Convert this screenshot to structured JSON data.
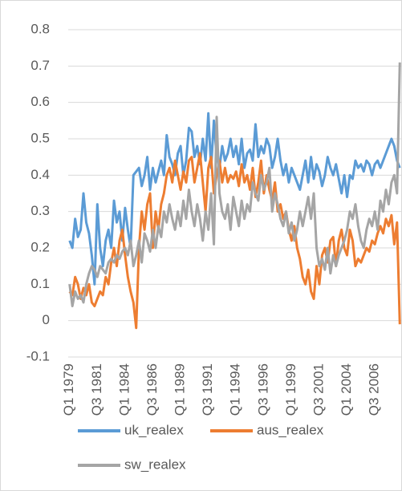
{
  "chart_data": {
    "type": "line",
    "categories": [
      "Q1 1979",
      null,
      null,
      null,
      null,
      null,
      null,
      null,
      null,
      null,
      "Q3 1981",
      null,
      null,
      null,
      null,
      null,
      null,
      null,
      null,
      null,
      "Q1 1984",
      null,
      null,
      null,
      null,
      null,
      null,
      null,
      null,
      null,
      "Q3 1986",
      null,
      null,
      null,
      null,
      null,
      null,
      null,
      null,
      null,
      "Q1 1989",
      null,
      null,
      null,
      null,
      null,
      null,
      null,
      null,
      null,
      "Q3 1991",
      null,
      null,
      null,
      null,
      null,
      null,
      null,
      null,
      null,
      "Q1 1994",
      null,
      null,
      null,
      null,
      null,
      null,
      null,
      null,
      null,
      "Q3 1996",
      null,
      null,
      null,
      null,
      null,
      null,
      null,
      null,
      null,
      "Q1 1999",
      null,
      null,
      null,
      null,
      null,
      null,
      null,
      null,
      null,
      "Q3 2001",
      null,
      null,
      null,
      null,
      null,
      null,
      null,
      null,
      null,
      "Q1 2004",
      null,
      null,
      null,
      null,
      null,
      null,
      null,
      null,
      null,
      "Q3 2006",
      null,
      null,
      null,
      null,
      null,
      null,
      null,
      null,
      null
    ],
    "series": [
      {
        "name": "uk_realex",
        "color": "#5b9bd5",
        "values": [
          0.22,
          0.2,
          0.28,
          0.23,
          0.25,
          0.35,
          0.27,
          0.24,
          0.18,
          0.1,
          0.32,
          0.2,
          0.15,
          0.22,
          0.25,
          0.2,
          0.33,
          0.27,
          0.3,
          0.22,
          0.31,
          0.25,
          0.2,
          0.4,
          0.41,
          0.42,
          0.37,
          0.4,
          0.45,
          0.36,
          0.42,
          0.38,
          0.41,
          0.44,
          0.4,
          0.51,
          0.45,
          0.43,
          0.4,
          0.46,
          0.48,
          0.4,
          0.44,
          0.53,
          0.52,
          0.45,
          0.48,
          0.43,
          0.5,
          0.44,
          0.57,
          0.42,
          0.55,
          0.45,
          0.42,
          0.48,
          0.44,
          0.46,
          0.5,
          0.45,
          0.48,
          0.43,
          0.5,
          0.42,
          0.46,
          0.47,
          0.44,
          0.54,
          0.45,
          0.48,
          0.46,
          0.5,
          0.48,
          0.42,
          0.45,
          0.5,
          0.44,
          0.4,
          0.43,
          0.38,
          0.42,
          0.4,
          0.38,
          0.36,
          0.4,
          0.44,
          0.38,
          0.45,
          0.39,
          0.43,
          0.41,
          0.37,
          0.4,
          0.45,
          0.42,
          0.4,
          0.43,
          0.39,
          0.35,
          0.4,
          0.34,
          0.4,
          0.39,
          0.44,
          0.42,
          0.43,
          0.41,
          0.44,
          0.43,
          0.4,
          0.43,
          0.44,
          0.42,
          0.44,
          0.46,
          0.48,
          0.5,
          0.48,
          0.44,
          0.42
        ]
      },
      {
        "name": "aus_realex",
        "color": "#ed7d31",
        "values": [
          0.08,
          0.07,
          0.12,
          0.1,
          0.06,
          0.09,
          0.07,
          0.1,
          0.05,
          0.04,
          0.06,
          0.08,
          0.07,
          0.12,
          0.1,
          0.16,
          0.2,
          0.15,
          0.22,
          0.25,
          0.18,
          0.12,
          0.08,
          0.05,
          -0.02,
          0.2,
          0.3,
          0.25,
          0.32,
          0.35,
          0.2,
          0.3,
          0.25,
          0.32,
          0.35,
          0.4,
          0.42,
          0.38,
          0.44,
          0.4,
          0.36,
          0.41,
          0.38,
          0.44,
          0.45,
          0.38,
          0.42,
          0.46,
          0.38,
          0.3,
          0.42,
          0.45,
          0.35,
          0.4,
          0.44,
          0.38,
          0.42,
          0.38,
          0.4,
          0.39,
          0.41,
          0.37,
          0.43,
          0.38,
          0.4,
          0.36,
          0.42,
          0.34,
          0.38,
          0.44,
          0.35,
          0.4,
          0.36,
          0.33,
          0.38,
          0.3,
          0.32,
          0.28,
          0.3,
          0.25,
          0.22,
          0.26,
          0.2,
          0.17,
          0.12,
          0.1,
          0.14,
          0.08,
          0.06,
          0.15,
          0.1,
          0.18,
          0.2,
          0.16,
          0.22,
          0.23,
          0.15,
          0.22,
          0.25,
          0.2,
          0.18,
          0.25,
          0.22,
          0.15,
          0.17,
          0.16,
          0.18,
          0.2,
          0.19,
          0.22,
          0.21,
          0.24,
          0.26,
          0.24,
          0.28,
          0.26,
          0.29,
          0.21,
          0.27,
          -0.01
        ]
      },
      {
        "name": "sw_realex",
        "color": "#a5a5a5",
        "values": [
          0.1,
          0.04,
          0.08,
          0.06,
          0.07,
          0.05,
          0.1,
          0.13,
          0.15,
          0.14,
          0.12,
          0.15,
          0.14,
          0.13,
          0.16,
          0.17,
          0.16,
          0.18,
          0.17,
          0.19,
          0.2,
          0.18,
          0.22,
          0.15,
          0.18,
          0.22,
          0.16,
          0.24,
          0.22,
          0.19,
          0.25,
          0.2,
          0.26,
          0.23,
          0.3,
          0.27,
          0.32,
          0.28,
          0.25,
          0.3,
          0.26,
          0.33,
          0.28,
          0.36,
          0.3,
          0.26,
          0.32,
          0.28,
          0.22,
          0.3,
          0.25,
          0.35,
          0.21,
          0.56,
          0.35,
          0.3,
          0.28,
          0.32,
          0.25,
          0.34,
          0.3,
          0.26,
          0.33,
          0.28,
          0.32,
          0.3,
          0.38,
          0.35,
          0.33,
          0.4,
          0.36,
          0.38,
          0.42,
          0.3,
          0.35,
          0.32,
          0.28,
          0.26,
          0.3,
          0.24,
          0.27,
          0.22,
          0.25,
          0.3,
          0.26,
          0.3,
          0.34,
          0.28,
          0.35,
          0.2,
          0.15,
          0.17,
          0.14,
          0.2,
          0.13,
          0.18,
          0.15,
          0.18,
          0.2,
          0.22,
          0.25,
          0.3,
          0.28,
          0.32,
          0.26,
          0.22,
          0.2,
          0.25,
          0.28,
          0.26,
          0.3,
          0.25,
          0.33,
          0.3,
          0.36,
          0.32,
          0.38,
          0.4,
          0.35,
          0.71
        ]
      }
    ],
    "ylim": [
      -0.1,
      0.8
    ],
    "yticks": [
      -0.1,
      0,
      0.1,
      0.2,
      0.3,
      0.4,
      0.5,
      0.6,
      0.7,
      0.8
    ],
    "grid": true
  }
}
